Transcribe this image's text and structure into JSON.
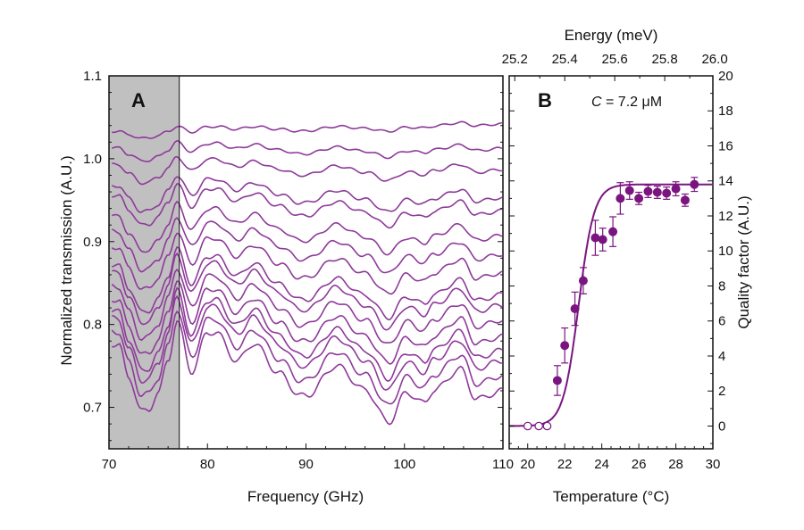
{
  "chart_data": [
    {
      "type": "line",
      "panel_label": "A",
      "xlabel": "Frequency (GHz)",
      "ylabel": "Normalized transmission (A.U.)",
      "xlim": [
        70,
        110
      ],
      "ylim": [
        0.65,
        1.1
      ],
      "xticks": [
        "70",
        "80",
        "90",
        "100",
        "110"
      ],
      "yticks": [
        "0.7",
        "0.8",
        "0.9",
        "1.0",
        "1.1"
      ],
      "shaded_region_x": [
        70,
        77
      ],
      "shaded_color": "#c0c0c0",
      "line_color": "#8e3a9a",
      "series_model": "value = start + amplitude * shape(f) + tilt * (f - 70) / 40",
      "shape": {
        "f": [
          70,
          71,
          72,
          73.3,
          74,
          75,
          76,
          76.9,
          78.4,
          80,
          80.8,
          83,
          84.7,
          87.3,
          89.4,
          90,
          93.1,
          96,
          98.4,
          100.2,
          102,
          103,
          105.7,
          107.3,
          110
        ],
        "v": [
          0,
          -0.002,
          -0.04,
          -0.082,
          -0.08,
          -0.06,
          -0.02,
          0.027,
          -0.034,
          0.013,
          0.014,
          -0.021,
          0,
          -0.036,
          -0.063,
          -0.063,
          -0.027,
          -0.056,
          -0.095,
          -0.059,
          -0.072,
          -0.056,
          -0.031,
          -0.067,
          -0.057
        ]
      },
      "series": [
        {
          "start": 1.033,
          "amplitude": 0.12,
          "tilt": 0.016
        },
        {
          "start": 1.013,
          "amplitude": 0.2,
          "tilt": 0.011
        },
        {
          "start": 0.993,
          "amplitude": 0.28,
          "tilt": 0.01
        },
        {
          "start": 0.968,
          "amplitude": 0.4,
          "tilt": 0.008
        },
        {
          "start": 0.956,
          "amplitude": 0.45,
          "tilt": 0.007
        },
        {
          "start": 0.931,
          "amplitude": 0.52,
          "tilt": 0.006
        },
        {
          "start": 0.913,
          "amplitude": 0.58,
          "tilt": 0.005
        },
        {
          "start": 0.894,
          "amplitude": 0.64,
          "tilt": 0.005
        },
        {
          "start": 0.872,
          "amplitude": 0.7,
          "tilt": 0.004
        },
        {
          "start": 0.863,
          "amplitude": 0.74,
          "tilt": 0.003
        },
        {
          "start": 0.847,
          "amplitude": 0.78,
          "tilt": 0.003
        },
        {
          "start": 0.831,
          "amplitude": 0.83,
          "tilt": 0.002
        },
        {
          "start": 0.817,
          "amplitude": 0.88,
          "tilt": 0.002
        },
        {
          "start": 0.808,
          "amplitude": 0.92,
          "tilt": 0.001
        },
        {
          "start": 0.793,
          "amplitude": 0.96,
          "tilt": 0.0
        },
        {
          "start": 0.777,
          "amplitude": 1.0,
          "tilt": 0.0
        }
      ]
    },
    {
      "type": "scatter",
      "panel_label": "B",
      "annotation_var": "C",
      "annotation_rest": " = 7.2 μM",
      "xlabel": "Temperature (°C)",
      "ylabel": "Quality factor (A.U.)",
      "top_xlabel": "Energy (meV)",
      "xlim": [
        19,
        30
      ],
      "ylim": [
        -1.3,
        20
      ],
      "xticks": [
        "20",
        "22",
        "24",
        "26",
        "28",
        "30"
      ],
      "yticks": [
        "0",
        "2",
        "4",
        "6",
        "8",
        "10",
        "12",
        "14",
        "16",
        "18",
        "20"
      ],
      "top_xticks": [
        "25.2",
        "25.4",
        "25.6",
        "25.8",
        "26.0"
      ],
      "top_xticks_temperature": [
        19.3,
        22.0,
        24.7,
        27.4,
        30.1
      ],
      "color": "#7a1580",
      "points_filled": [
        {
          "x": 21.6,
          "y": 2.6,
          "err": 0.85
        },
        {
          "x": 22.0,
          "y": 4.6,
          "err": 1.0
        },
        {
          "x": 22.55,
          "y": 6.7,
          "err": 0.95
        },
        {
          "x": 23.0,
          "y": 8.3,
          "err": 0.75
        },
        {
          "x": 23.65,
          "y": 10.75,
          "err": 1.0
        },
        {
          "x": 24.05,
          "y": 10.65,
          "err": 0.65
        },
        {
          "x": 24.6,
          "y": 11.1,
          "err": 0.85
        },
        {
          "x": 25.0,
          "y": 13.0,
          "err": 0.9
        },
        {
          "x": 25.5,
          "y": 13.45,
          "err": 0.5
        },
        {
          "x": 26.0,
          "y": 13.0,
          "err": 0.35
        },
        {
          "x": 26.5,
          "y": 13.4,
          "err": 0.35
        },
        {
          "x": 27.0,
          "y": 13.35,
          "err": 0.35
        },
        {
          "x": 27.5,
          "y": 13.3,
          "err": 0.35
        },
        {
          "x": 28.0,
          "y": 13.55,
          "err": 0.4
        },
        {
          "x": 28.5,
          "y": 12.9,
          "err": 0.35
        },
        {
          "x": 29.0,
          "y": 13.8,
          "err": 0.4
        }
      ],
      "points_open": [
        {
          "x": 20.0,
          "y": 0
        },
        {
          "x": 20.6,
          "y": 0
        },
        {
          "x": 21.05,
          "y": 0
        }
      ],
      "fit": {
        "model": "sigmoid",
        "plateau": 13.8,
        "center": 22.75,
        "width": 0.42
      }
    }
  ]
}
